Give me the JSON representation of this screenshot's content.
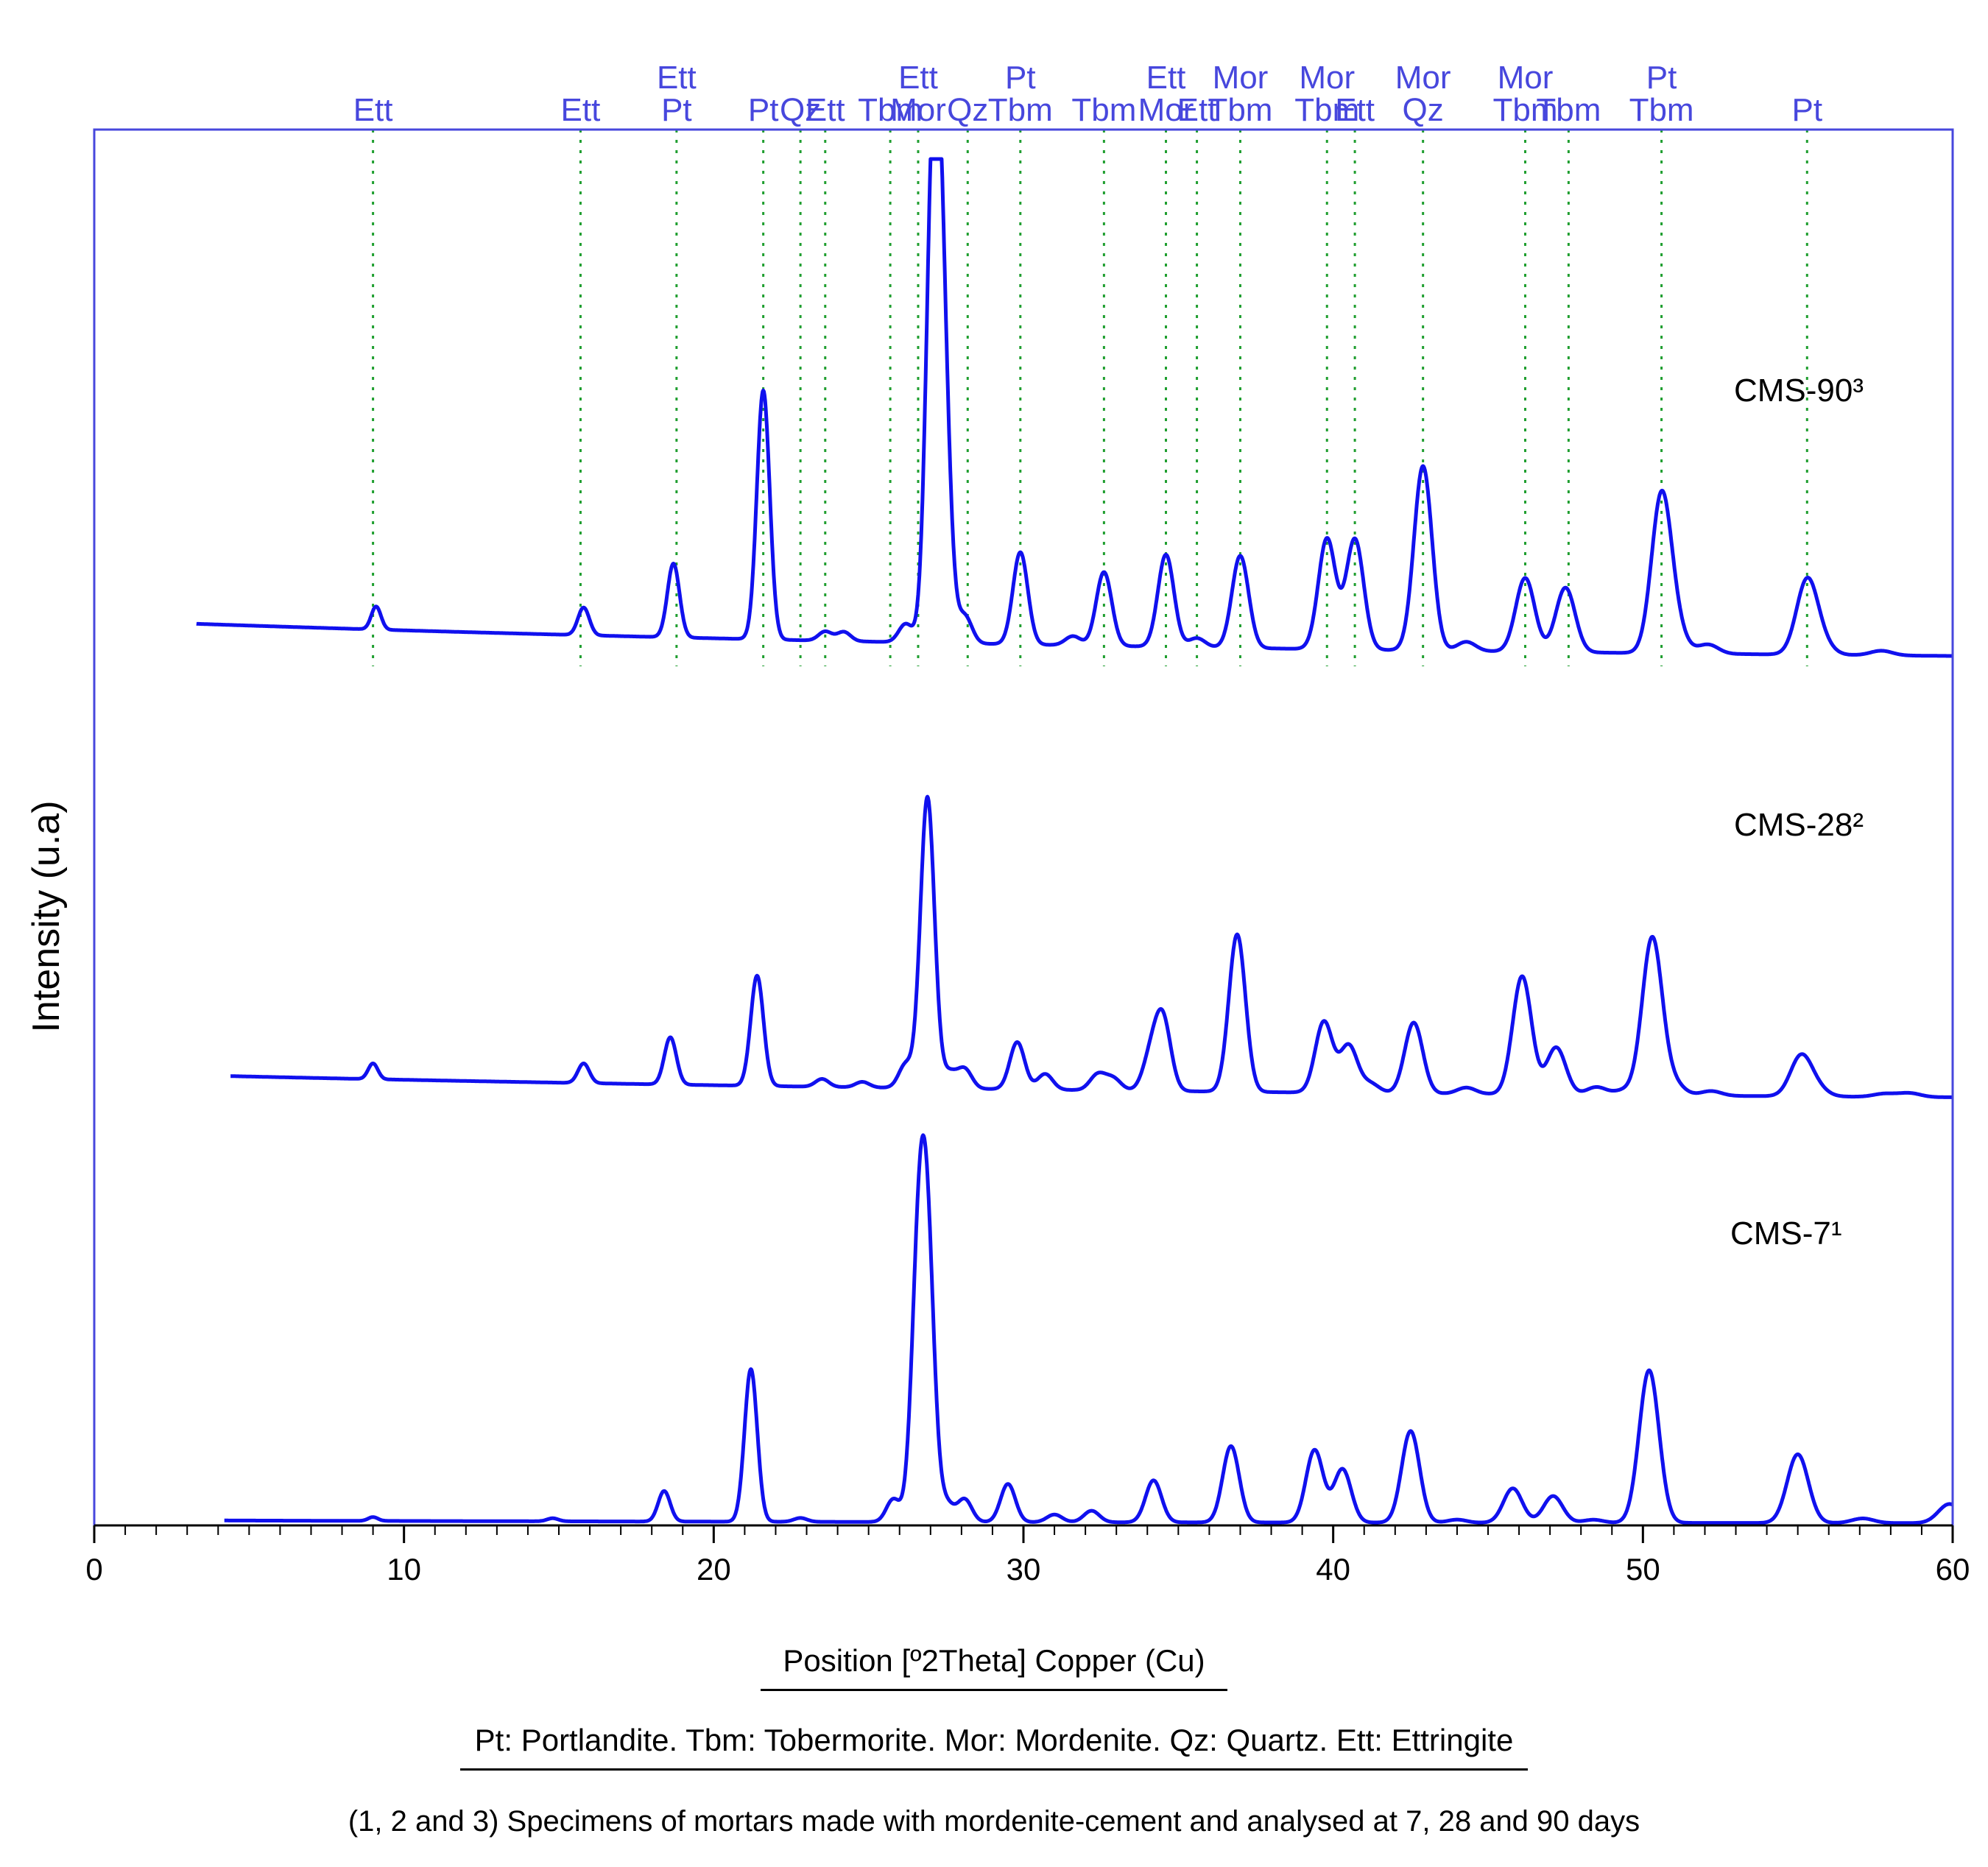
{
  "chart_data": {
    "type": "line",
    "xlabel": "Position [º2Theta] Copper (Cu)",
    "ylabel": "Intensity (u.a)",
    "xlim": [
      0,
      60
    ],
    "x_ticks": [
      0,
      10,
      20,
      30,
      40,
      50,
      60
    ],
    "grid": false,
    "line_color": "#1010ee",
    "reference_line_color": "#1f9e2f",
    "label_color": "#4747dd",
    "series": [
      {
        "name": "CMS-90³",
        "baseline": 0.05,
        "x_start": 3.3,
        "peaks": [
          [
            9.1,
            0.025
          ],
          [
            15.8,
            0.03
          ],
          [
            18.7,
            0.08
          ],
          [
            21.6,
            0.27
          ],
          [
            23.6,
            0.01
          ],
          [
            24.2,
            0.01
          ],
          [
            26.2,
            0.02
          ],
          [
            27.1,
            0.52
          ],
          [
            27.4,
            0.26
          ],
          [
            28.1,
            0.03
          ],
          [
            29.9,
            0.1
          ],
          [
            31.6,
            0.01
          ],
          [
            32.6,
            0.08
          ],
          [
            34.6,
            0.1
          ],
          [
            35.6,
            0.01
          ],
          [
            37.0,
            0.1
          ],
          [
            39.8,
            0.12
          ],
          [
            40.7,
            0.12
          ],
          [
            42.9,
            0.2
          ],
          [
            44.3,
            0.01
          ],
          [
            46.2,
            0.08
          ],
          [
            47.5,
            0.07
          ],
          [
            50.6,
            0.17
          ],
          [
            51.1,
            0.02
          ],
          [
            52.1,
            0.01
          ],
          [
            55.3,
            0.08
          ],
          [
            55.8,
            0.01
          ],
          [
            57.7,
            0.005
          ]
        ]
      },
      {
        "name": "CMS-28²",
        "baseline": 0.04,
        "x_start": 4.4,
        "peaks": [
          [
            9.0,
            0.02
          ],
          [
            15.8,
            0.025
          ],
          [
            18.6,
            0.06
          ],
          [
            21.4,
            0.14
          ],
          [
            23.5,
            0.01
          ],
          [
            24.8,
            0.007
          ],
          [
            26.2,
            0.03
          ],
          [
            26.9,
            0.37
          ],
          [
            27.6,
            0.02
          ],
          [
            28.1,
            0.025
          ],
          [
            29.8,
            0.06
          ],
          [
            30.7,
            0.02
          ],
          [
            32.4,
            0.02
          ],
          [
            32.9,
            0.015
          ],
          [
            34.1,
            0.04
          ],
          [
            34.5,
            0.09
          ],
          [
            36.9,
            0.2
          ],
          [
            39.7,
            0.09
          ],
          [
            40.5,
            0.06
          ],
          [
            41.2,
            0.012
          ],
          [
            42.6,
            0.09
          ],
          [
            44.3,
            0.008
          ],
          [
            46.1,
            0.15
          ],
          [
            47.2,
            0.06
          ],
          [
            48.5,
            0.01
          ],
          [
            49.4,
            0.006
          ],
          [
            50.3,
            0.2
          ],
          [
            51.0,
            0.015
          ],
          [
            52.2,
            0.006
          ],
          [
            55.1,
            0.05
          ],
          [
            55.6,
            0.01
          ],
          [
            57.8,
            0.004
          ],
          [
            58.6,
            0.005
          ]
        ]
      },
      {
        "name": "CMS-7¹",
        "baseline": 0.005,
        "x_start": 4.2,
        "peaks": [
          [
            9.0,
            0.005
          ],
          [
            14.8,
            0.004
          ],
          [
            18.4,
            0.04
          ],
          [
            21.2,
            0.2
          ],
          [
            22.8,
            0.005
          ],
          [
            25.8,
            0.03
          ],
          [
            26.6,
            0.3
          ],
          [
            26.9,
            0.33
          ],
          [
            27.5,
            0.025
          ],
          [
            28.1,
            0.03
          ],
          [
            29.5,
            0.05
          ],
          [
            31.0,
            0.01
          ],
          [
            32.2,
            0.015
          ],
          [
            34.2,
            0.055
          ],
          [
            36.7,
            0.1
          ],
          [
            39.4,
            0.095
          ],
          [
            40.3,
            0.07
          ],
          [
            42.5,
            0.12
          ],
          [
            44.0,
            0.004
          ],
          [
            45.8,
            0.045
          ],
          [
            47.1,
            0.035
          ],
          [
            48.4,
            0.004
          ],
          [
            50.2,
            0.2
          ],
          [
            55.0,
            0.09
          ],
          [
            57.1,
            0.006
          ],
          [
            59.9,
            0.025
          ]
        ]
      }
    ],
    "reference_lines": [
      {
        "x": 9.0,
        "labels": [
          "Ett"
        ]
      },
      {
        "x": 15.7,
        "labels": [
          "Ett"
        ]
      },
      {
        "x": 18.8,
        "labels": [
          "Ett",
          "Pt"
        ]
      },
      {
        "x": 21.6,
        "labels": [
          "Pt"
        ]
      },
      {
        "x": 22.8,
        "labels": [
          "Qz"
        ]
      },
      {
        "x": 23.6,
        "labels": [
          "Ett"
        ]
      },
      {
        "x": 25.7,
        "labels": [
          "Tbm"
        ]
      },
      {
        "x": 26.6,
        "labels": [
          "Ett",
          "Mor"
        ]
      },
      {
        "x": 28.2,
        "labels": [
          "Qz"
        ]
      },
      {
        "x": 29.9,
        "labels": [
          "Pt",
          "Tbm"
        ]
      },
      {
        "x": 32.6,
        "labels": [
          "Tbm"
        ]
      },
      {
        "x": 34.6,
        "labels": [
          "Ett",
          "Mor"
        ]
      },
      {
        "x": 35.6,
        "labels": [
          "Ett"
        ]
      },
      {
        "x": 37.0,
        "labels": [
          "Mor",
          "Tbm"
        ]
      },
      {
        "x": 39.8,
        "labels": [
          "Mor",
          "Tbm"
        ]
      },
      {
        "x": 40.7,
        "labels": [
          "Ett"
        ]
      },
      {
        "x": 42.9,
        "labels": [
          "Mor",
          "Qz"
        ]
      },
      {
        "x": 46.2,
        "labels": [
          "Mor",
          "Tbm"
        ]
      },
      {
        "x": 47.6,
        "labels": [
          "Tbm"
        ]
      },
      {
        "x": 50.6,
        "labels": [
          "Pt",
          "Tbm"
        ]
      },
      {
        "x": 55.3,
        "labels": [
          "Pt"
        ]
      }
    ],
    "legend_text": "Pt: Portlandite. Tbm: Tobermorite. Mor: Mordenite. Qz: Quartz. Ett: Ettringite",
    "note": "(1, 2 and 3) Specimens of mortars made with mordenite-cement and analysed at 7, 28 and 90 days"
  }
}
